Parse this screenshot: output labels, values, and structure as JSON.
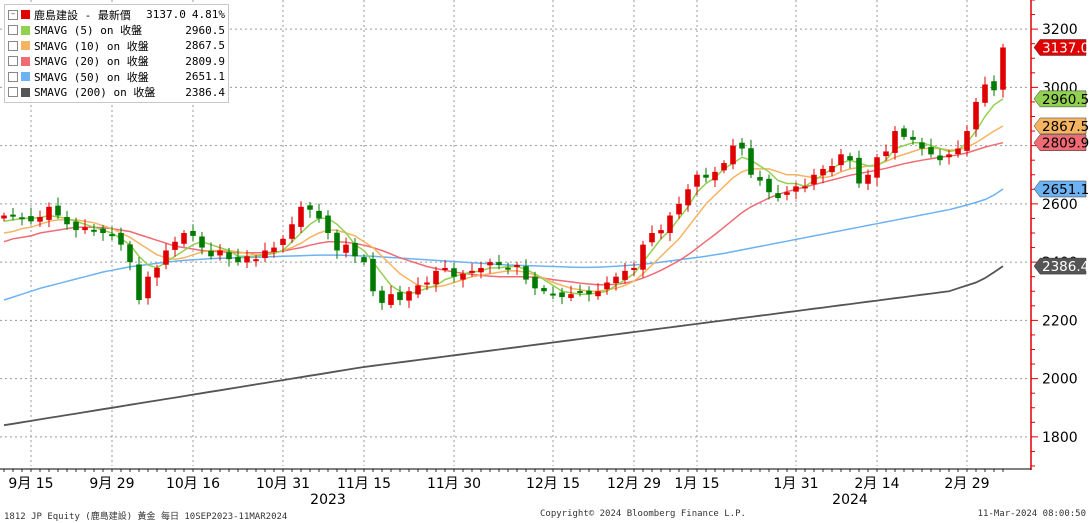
{
  "legend": {
    "title": "鹿島建設 - 最新價",
    "last": "3137.0",
    "change": "4.81%",
    "items": [
      {
        "label": "SMAVG (5)  on 收盤",
        "value": "2960.5",
        "color": "#92d050"
      },
      {
        "label": "SMAVG (10)  on 收盤",
        "value": "2867.5",
        "color": "#f5b461"
      },
      {
        "label": "SMAVG (20)  on 收盤",
        "value": "2809.9",
        "color": "#f06b74"
      },
      {
        "label": "SMAVG (50)  on 收盤",
        "value": "2651.1",
        "color": "#6db2f2"
      },
      {
        "label": "SMAVG (200)  on 收盤",
        "value": "2386.4",
        "color": "#555555"
      }
    ]
  },
  "footer": {
    "left": "1812 JP Equity (鹿島建設) 黃金  每日 10SEP2023-11MAR2024",
    "center": "Copyright© 2024 Bloomberg Finance L.P.",
    "right": "11-Mar-2024 08:00:50"
  },
  "chart_data": {
    "type": "candlestick",
    "ylim": [
      1700,
      3300
    ],
    "yticks": [
      1800,
      2000,
      2200,
      2400,
      2600,
      2800,
      3000,
      3200
    ],
    "grid": true,
    "xticks": [
      {
        "label": "9月 15",
        "i": 3
      },
      {
        "label": "9月 29",
        "i": 12
      },
      {
        "label": "10月 16",
        "i": 21
      },
      {
        "label": "10月 31",
        "i": 31
      },
      {
        "label": "11月 15",
        "i": 40
      },
      {
        "label": "11月 30",
        "i": 50
      },
      {
        "label": "12月 15",
        "i": 61
      },
      {
        "label": "12月 29",
        "i": 70
      },
      {
        "label": "1月 15",
        "i": 77
      },
      {
        "label": "1月 31",
        "i": 88
      },
      {
        "label": "2月 14",
        "i": 97
      },
      {
        "label": "2月 29",
        "i": 107
      }
    ],
    "year_labels": [
      {
        "label": "2023",
        "i": 36
      },
      {
        "label": "2024",
        "i": 94
      }
    ],
    "current_price": {
      "value": 3137.0,
      "label": "3137.0",
      "color": "#e00000"
    },
    "ma_tags": [
      {
        "value": 2960.5,
        "label": "2960.5",
        "color": "#92d050"
      },
      {
        "value": 2867.5,
        "label": "2867.5",
        "color": "#f5b461"
      },
      {
        "value": 2809.9,
        "label": "2809.9",
        "color": "#f06b74"
      },
      {
        "value": 2651.1,
        "label": "2651.1",
        "color": "#6db2f2"
      },
      {
        "value": 2386.4,
        "label": "2386.4",
        "color": "#555555"
      }
    ],
    "series_closes": [
      2560,
      2560,
      2550,
      2540,
      2555,
      2590,
      2560,
      2530,
      2510,
      2520,
      2510,
      2500,
      2490,
      2460,
      2400,
      2270,
      2350,
      2380,
      2440,
      2470,
      2500,
      2490,
      2450,
      2420,
      2440,
      2410,
      2400,
      2420,
      2410,
      2440,
      2450,
      2480,
      2530,
      2590,
      2580,
      2550,
      2500,
      2440,
      2460,
      2420,
      2400,
      2300,
      2260,
      2290,
      2270,
      2300,
      2320,
      2330,
      2370,
      2380,
      2350,
      2360,
      2370,
      2380,
      2400,
      2390,
      2380,
      2390,
      2340,
      2310,
      2300,
      2290,
      2280,
      2290,
      2300,
      2290,
      2300,
      2330,
      2350,
      2370,
      2380,
      2460,
      2500,
      2510,
      2560,
      2600,
      2650,
      2700,
      2690,
      2710,
      2740,
      2800,
      2790,
      2700,
      2680,
      2640,
      2620,
      2640,
      2660,
      2660,
      2700,
      2720,
      2730,
      2770,
      2750,
      2670,
      2700,
      2760,
      2780,
      2850,
      2830,
      2820,
      2790,
      2770,
      2750,
      2770,
      2790,
      2850,
      2950,
      3010,
      2990,
      3137
    ],
    "ma5": [
      2540,
      2545,
      2550,
      2550,
      2553,
      2560,
      2555,
      2550,
      2540,
      2530,
      2520,
      2510,
      2500,
      2480,
      2460,
      2420,
      2390,
      2380,
      2400,
      2420,
      2440,
      2460,
      2470,
      2460,
      2450,
      2440,
      2420,
      2420,
      2420,
      2425,
      2430,
      2440,
      2470,
      2500,
      2530,
      2550,
      2550,
      2530,
      2500,
      2460,
      2440,
      2400,
      2360,
      2320,
      2300,
      2290,
      2300,
      2310,
      2320,
      2340,
      2350,
      2360,
      2365,
      2370,
      2380,
      2380,
      2385,
      2385,
      2375,
      2360,
      2340,
      2320,
      2300,
      2295,
      2290,
      2290,
      2295,
      2300,
      2320,
      2340,
      2360,
      2400,
      2440,
      2480,
      2510,
      2550,
      2590,
      2640,
      2670,
      2690,
      2720,
      2740,
      2760,
      2750,
      2730,
      2710,
      2680,
      2670,
      2670,
      2660,
      2680,
      2700,
      2720,
      2740,
      2750,
      2740,
      2730,
      2730,
      2750,
      2790,
      2800,
      2810,
      2810,
      2800,
      2790,
      2780,
      2785,
      2810,
      2850,
      2900,
      2940,
      2960.5
    ],
    "ma10": [
      2500,
      2505,
      2515,
      2520,
      2530,
      2540,
      2545,
      2545,
      2545,
      2540,
      2535,
      2525,
      2515,
      2500,
      2485,
      2465,
      2445,
      2425,
      2415,
      2410,
      2415,
      2425,
      2435,
      2440,
      2440,
      2440,
      2435,
      2430,
      2425,
      2425,
      2430,
      2440,
      2450,
      2465,
      2485,
      2500,
      2510,
      2510,
      2500,
      2490,
      2470,
      2450,
      2420,
      2390,
      2360,
      2340,
      2320,
      2315,
      2315,
      2320,
      2330,
      2340,
      2350,
      2355,
      2360,
      2365,
      2370,
      2370,
      2365,
      2355,
      2345,
      2330,
      2320,
      2310,
      2305,
      2300,
      2300,
      2305,
      2310,
      2320,
      2335,
      2360,
      2390,
      2420,
      2450,
      2480,
      2520,
      2560,
      2600,
      2630,
      2660,
      2690,
      2710,
      2720,
      2720,
      2720,
      2710,
      2700,
      2700,
      2695,
      2690,
      2690,
      2695,
      2710,
      2720,
      2725,
      2730,
      2735,
      2745,
      2760,
      2770,
      2780,
      2790,
      2790,
      2790,
      2785,
      2785,
      2795,
      2810,
      2830,
      2850,
      2867.5
    ],
    "ma20": [
      2470,
      2480,
      2485,
      2490,
      2500,
      2505,
      2510,
      2515,
      2520,
      2520,
      2520,
      2518,
      2515,
      2510,
      2505,
      2495,
      2485,
      2475,
      2465,
      2455,
      2450,
      2445,
      2440,
      2438,
      2436,
      2434,
      2432,
      2432,
      2432,
      2432,
      2434,
      2438,
      2444,
      2450,
      2458,
      2465,
      2470,
      2470,
      2468,
      2464,
      2458,
      2450,
      2440,
      2428,
      2415,
      2405,
      2395,
      2385,
      2378,
      2372,
      2366,
      2362,
      2358,
      2354,
      2352,
      2350,
      2350,
      2350,
      2350,
      2348,
      2345,
      2340,
      2336,
      2332,
      2328,
      2325,
      2322,
      2322,
      2324,
      2328,
      2335,
      2345,
      2358,
      2372,
      2388,
      2405,
      2425,
      2448,
      2472,
      2495,
      2520,
      2545,
      2570,
      2590,
      2605,
      2620,
      2632,
      2642,
      2650,
      2658,
      2666,
      2674,
      2682,
      2690,
      2698,
      2704,
      2710,
      2716,
      2722,
      2730,
      2738,
      2744,
      2750,
      2755,
      2760,
      2764,
      2768,
      2775,
      2785,
      2795,
      2803,
      2809.9
    ],
    "ma50": [
      2270,
      2280,
      2290,
      2300,
      2310,
      2318,
      2326,
      2334,
      2342,
      2350,
      2358,
      2366,
      2372,
      2378,
      2384,
      2388,
      2392,
      2396,
      2400,
      2403,
      2406,
      2408,
      2410,
      2412,
      2413,
      2414,
      2415,
      2416,
      2417,
      2418,
      2419,
      2420,
      2421,
      2422,
      2423,
      2424,
      2424,
      2424,
      2423,
      2422,
      2421,
      2420,
      2418,
      2416,
      2414,
      2412,
      2410,
      2408,
      2406,
      2404,
      2402,
      2400,
      2398,
      2396,
      2394,
      2392,
      2390,
      2389,
      2388,
      2387,
      2386,
      2385,
      2384,
      2383,
      2382,
      2382,
      2383,
      2384,
      2386,
      2388,
      2390,
      2393,
      2396,
      2400,
      2404,
      2408,
      2412,
      2416,
      2420,
      2425,
      2430,
      2436,
      2442,
      2448,
      2454,
      2460,
      2466,
      2472,
      2478,
      2484,
      2490,
      2496,
      2502,
      2508,
      2514,
      2520,
      2526,
      2532,
      2538,
      2544,
      2550,
      2556,
      2562,
      2568,
      2574,
      2580,
      2588,
      2596,
      2605,
      2615,
      2630,
      2651.1
    ],
    "ma200": [
      1840,
      1845,
      1850,
      1855,
      1860,
      1865,
      1870,
      1875,
      1880,
      1885,
      1890,
      1895,
      1900,
      1905,
      1910,
      1915,
      1920,
      1925,
      1930,
      1935,
      1940,
      1945,
      1950,
      1955,
      1960,
      1965,
      1970,
      1975,
      1980,
      1985,
      1990,
      1995,
      2000,
      2005,
      2010,
      2015,
      2020,
      2025,
      2030,
      2035,
      2040,
      2044,
      2048,
      2052,
      2056,
      2060,
      2064,
      2068,
      2072,
      2076,
      2080,
      2084,
      2088,
      2092,
      2096,
      2100,
      2104,
      2108,
      2112,
      2116,
      2120,
      2124,
      2128,
      2132,
      2136,
      2140,
      2144,
      2148,
      2152,
      2156,
      2160,
      2164,
      2168,
      2172,
      2176,
      2180,
      2184,
      2188,
      2192,
      2196,
      2200,
      2204,
      2208,
      2212,
      2216,
      2220,
      2224,
      2228,
      2232,
      2236,
      2240,
      2244,
      2248,
      2252,
      2256,
      2260,
      2264,
      2268,
      2272,
      2276,
      2280,
      2284,
      2288,
      2292,
      2296,
      2300,
      2310,
      2320,
      2330,
      2345,
      2365,
      2386.4
    ]
  }
}
